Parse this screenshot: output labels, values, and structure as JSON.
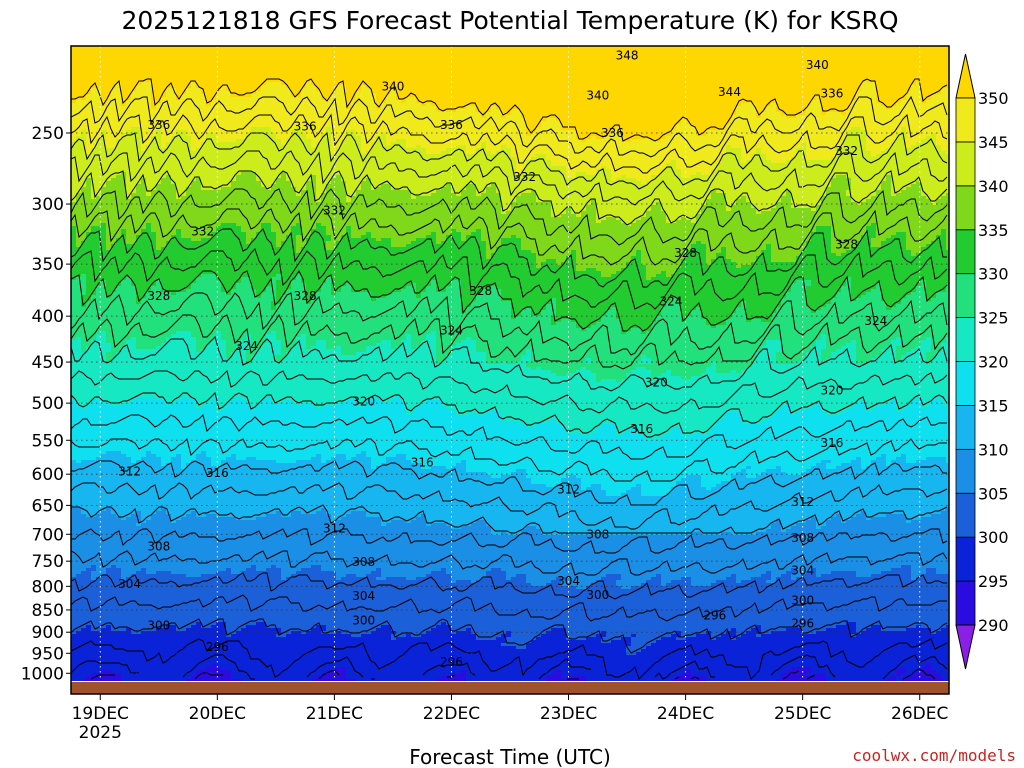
{
  "title": "2025121818 GFS Forecast Potential Temperature (K) for KSRQ",
  "xlabel": "Forecast Time (UTC)",
  "source": "coolwx.com/models",
  "chart_data": {
    "type": "heatmap",
    "title": "2025121818 GFS Forecast Potential Temperature (K) for KSRQ",
    "xlabel": "Forecast Time (UTC)",
    "ylabel": "",
    "y_scale": "log-pressure",
    "y_inverted": true,
    "x_ticks": [
      {
        "date": "2025-12-19",
        "label": "19DEC",
        "sublabel": "2025"
      },
      {
        "date": "2025-12-20",
        "label": "20DEC"
      },
      {
        "date": "2025-12-21",
        "label": "21DEC"
      },
      {
        "date": "2025-12-22",
        "label": "22DEC"
      },
      {
        "date": "2025-12-23",
        "label": "23DEC"
      },
      {
        "date": "2025-12-24",
        "label": "24DEC"
      },
      {
        "date": "2025-12-25",
        "label": "25DEC"
      },
      {
        "date": "2025-12-26",
        "label": "26DEC"
      }
    ],
    "xlim": [
      "2025-12-18T18:00",
      "2025-12-26T06:00"
    ],
    "y_ticks": [
      250,
      300,
      350,
      400,
      450,
      500,
      550,
      600,
      650,
      700,
      750,
      800,
      850,
      900,
      950,
      1000
    ],
    "ylim": [
      200,
      1020
    ],
    "grid": true,
    "colorbar": {
      "levels": [
        290,
        295,
        300,
        305,
        310,
        315,
        320,
        325,
        330,
        335,
        340,
        345,
        350
      ],
      "colors": [
        "#8a1fe6",
        "#2a0ce0",
        "#0a22d8",
        "#1b60d8",
        "#1b8ee6",
        "#17b6f0",
        "#0ee0ef",
        "#16e8c4",
        "#22e07c",
        "#22cc30",
        "#7fd81a",
        "#ccec1c",
        "#f0ea1c",
        "#ffd700"
      ],
      "extend": "both",
      "orientation": "vertical",
      "position": "right"
    },
    "contour_labels": [
      {
        "value": 348,
        "time": "2025-12-23T12:00",
        "p": 205
      },
      {
        "value": 340,
        "time": "2025-12-25T03:00",
        "p": 210
      },
      {
        "value": 340,
        "time": "2025-12-21T12:00",
        "p": 222
      },
      {
        "value": 344,
        "time": "2025-12-24T09:00",
        "p": 225
      },
      {
        "value": 340,
        "time": "2025-12-23T06:00",
        "p": 227
      },
      {
        "value": 336,
        "time": "2025-12-25T06:00",
        "p": 226
      },
      {
        "value": 336,
        "time": "2025-12-19T12:00",
        "p": 245
      },
      {
        "value": 336,
        "time": "2025-12-20T18:00",
        "p": 246
      },
      {
        "value": 336,
        "time": "2025-12-21T24:00",
        "p": 245
      },
      {
        "value": 336,
        "time": "2025-12-23T09:00",
        "p": 250
      },
      {
        "value": 332,
        "time": "2025-12-25T09:00",
        "p": 262
      },
      {
        "value": 332,
        "time": "2025-12-22T15:00",
        "p": 280
      },
      {
        "value": 332,
        "time": "2025-12-21T00:00",
        "p": 305
      },
      {
        "value": 332,
        "time": "2025-12-19T21:00",
        "p": 322
      },
      {
        "value": 328,
        "time": "2025-12-24T00:00",
        "p": 340
      },
      {
        "value": 328,
        "time": "2025-12-25T09:00",
        "p": 333
      },
      {
        "value": 328,
        "time": "2025-12-19T12:00",
        "p": 380
      },
      {
        "value": 328,
        "time": "2025-12-20T18:00",
        "p": 380
      },
      {
        "value": 328,
        "time": "2025-12-22T06:00",
        "p": 375
      },
      {
        "value": 324,
        "time": "2025-12-23T21:00",
        "p": 385
      },
      {
        "value": 324,
        "time": "2025-12-22T00:00",
        "p": 415
      },
      {
        "value": 324,
        "time": "2025-12-25T15:00",
        "p": 405
      },
      {
        "value": 324,
        "time": "2025-12-20T06:00",
        "p": 432
      },
      {
        "value": 320,
        "time": "2025-12-23T18:00",
        "p": 474
      },
      {
        "value": 320,
        "time": "2025-12-25T06:00",
        "p": 484
      },
      {
        "value": 320,
        "time": "2025-12-21T06:00",
        "p": 498
      },
      {
        "value": 316,
        "time": "2025-12-23T15:00",
        "p": 534
      },
      {
        "value": 316,
        "time": "2025-12-25T06:00",
        "p": 554
      },
      {
        "value": 316,
        "time": "2025-12-21T18:00",
        "p": 582
      },
      {
        "value": 312,
        "time": "2025-12-19T06:00",
        "p": 596
      },
      {
        "value": 316,
        "time": "2025-12-19T24:00",
        "p": 598
      },
      {
        "value": 312,
        "time": "2025-12-23T00:00",
        "p": 624
      },
      {
        "value": 312,
        "time": "2025-12-25T00:00",
        "p": 644
      },
      {
        "value": 312,
        "time": "2025-12-21T00:00",
        "p": 690
      },
      {
        "value": 308,
        "time": "2025-12-23T06:00",
        "p": 700
      },
      {
        "value": 308,
        "time": "2025-12-25T00:00",
        "p": 707
      },
      {
        "value": 308,
        "time": "2025-12-19T12:00",
        "p": 722
      },
      {
        "value": 308,
        "time": "2025-12-21T06:00",
        "p": 752
      },
      {
        "value": 304,
        "time": "2025-12-25T00:00",
        "p": 768
      },
      {
        "value": 304,
        "time": "2025-12-23T00:00",
        "p": 789
      },
      {
        "value": 304,
        "time": "2025-12-19T06:00",
        "p": 795
      },
      {
        "value": 300,
        "time": "2025-12-23T06:00",
        "p": 818
      },
      {
        "value": 304,
        "time": "2025-12-21T06:00",
        "p": 820
      },
      {
        "value": 300,
        "time": "2025-12-25T00:00",
        "p": 830
      },
      {
        "value": 296,
        "time": "2025-12-24T06:00",
        "p": 862
      },
      {
        "value": 296,
        "time": "2025-12-25T00:00",
        "p": 880
      },
      {
        "value": 300,
        "time": "2025-12-21T06:00",
        "p": 873
      },
      {
        "value": 300,
        "time": "2025-12-19T12:00",
        "p": 885
      },
      {
        "value": 296,
        "time": "2025-12-20T00:00",
        "p": 935
      },
      {
        "value": 296,
        "time": "2025-12-21T24:00",
        "p": 972
      }
    ]
  }
}
